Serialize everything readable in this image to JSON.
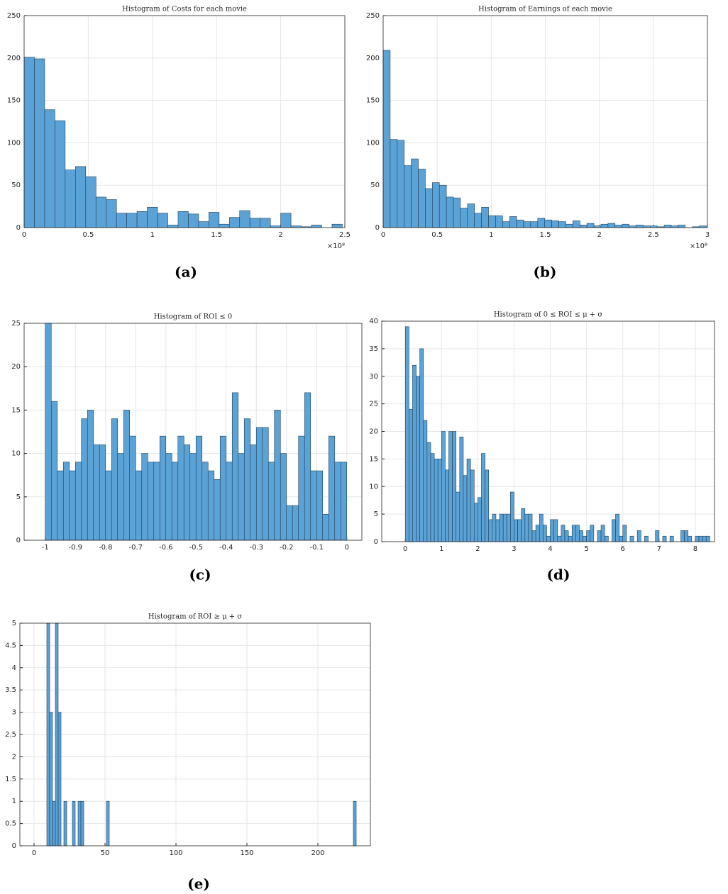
{
  "chart_data": [
    {
      "type": "histogram",
      "title": "Histogram of Costs for each movie",
      "caption": "(a)",
      "x_scale_label": "×10⁸",
      "color": "#5ba3d6",
      "grid": true,
      "xlim": [
        0,
        2.5
      ],
      "ylim": [
        0,
        250
      ],
      "xticks": [
        0,
        0.5,
        1,
        1.5,
        2,
        2.5
      ],
      "yticks": [
        0,
        50,
        100,
        150,
        200,
        250
      ],
      "bins": [
        0,
        0.08,
        0.16,
        0.24,
        0.32,
        0.4,
        0.48,
        0.56,
        0.64,
        0.72,
        0.8,
        0.88,
        0.96,
        1.04,
        1.12,
        1.2,
        1.28,
        1.36,
        1.44,
        1.52,
        1.6,
        1.68,
        1.76,
        1.84,
        1.92,
        2,
        2.08,
        2.16,
        2.24,
        2.32,
        2.4,
        2.48
      ],
      "values": [
        201,
        199,
        139,
        126,
        68,
        72,
        60,
        36,
        33,
        17,
        17,
        19,
        24,
        17,
        3,
        19,
        16,
        7,
        18,
        4,
        12,
        20,
        11,
        11,
        2,
        17,
        2,
        1,
        3,
        0,
        4
      ]
    },
    {
      "type": "histogram",
      "title": "Histogram of Earnings of each movie",
      "caption": "(b)",
      "x_scale_label": "×10⁸",
      "color": "#5ba3d6",
      "grid": true,
      "xlim": [
        0,
        3
      ],
      "ylim": [
        0,
        250
      ],
      "xticks": [
        0,
        0.5,
        1,
        1.5,
        2,
        2.5,
        3
      ],
      "yticks": [
        0,
        50,
        100,
        150,
        200,
        250
      ],
      "bins": [
        0,
        0.065,
        0.13,
        0.195,
        0.26,
        0.325,
        0.39,
        0.455,
        0.52,
        0.585,
        0.65,
        0.715,
        0.78,
        0.845,
        0.91,
        0.975,
        1.04,
        1.105,
        1.17,
        1.235,
        1.3,
        1.365,
        1.43,
        1.495,
        1.56,
        1.625,
        1.69,
        1.755,
        1.82,
        1.885,
        1.95,
        2.015,
        2.08,
        2.145,
        2.21,
        2.275,
        2.34,
        2.405,
        2.47,
        2.535,
        2.6,
        2.665,
        2.73,
        2.795,
        2.86,
        2.925,
        2.99
      ],
      "values": [
        209,
        104,
        103,
        73,
        81,
        69,
        46,
        53,
        50,
        36,
        35,
        23,
        28,
        17,
        24,
        14,
        14,
        7,
        13,
        9,
        7,
        7,
        11,
        9,
        8,
        7,
        4,
        8,
        3,
        5,
        2,
        4,
        5,
        3,
        4,
        2,
        3,
        2,
        2,
        1,
        3,
        2,
        3,
        0,
        1,
        2
      ]
    },
    {
      "type": "histogram",
      "title": "Histogram of ROI ≤ 0",
      "caption": "(c)",
      "color": "#5ba3d6",
      "grid": true,
      "xlim": [
        -1.07,
        0.05
      ],
      "ylim": [
        0,
        25
      ],
      "xticks": [
        -1,
        -0.9,
        -0.8,
        -0.7,
        -0.6,
        -0.5,
        -0.4,
        -0.3,
        -0.2,
        -0.1,
        0
      ],
      "yticks": [
        0,
        5,
        10,
        15,
        20,
        25
      ],
      "bins": [
        -1,
        -0.98,
        -0.96,
        -0.94,
        -0.92,
        -0.9,
        -0.88,
        -0.86,
        -0.84,
        -0.82,
        -0.8,
        -0.78,
        -0.76,
        -0.74,
        -0.72,
        -0.7,
        -0.68,
        -0.66,
        -0.64,
        -0.62,
        -0.6,
        -0.58,
        -0.56,
        -0.54,
        -0.52,
        -0.5,
        -0.48,
        -0.46,
        -0.44,
        -0.42,
        -0.4,
        -0.38,
        -0.36,
        -0.34,
        -0.32,
        -0.3,
        -0.28,
        -0.26,
        -0.24,
        -0.22,
        -0.2,
        -0.18,
        -0.16,
        -0.14,
        -0.12,
        -0.1,
        -0.08,
        -0.06,
        -0.04,
        -0.02,
        0
      ],
      "values": [
        25,
        16,
        8,
        9,
        8,
        9,
        14,
        15,
        11,
        11,
        8,
        14,
        10,
        15,
        12,
        8,
        10,
        9,
        9,
        12,
        10,
        9,
        12,
        11,
        10,
        12,
        9,
        8,
        7,
        12,
        9,
        17,
        10,
        14,
        11,
        13,
        13,
        9,
        15,
        10,
        4,
        4,
        12,
        17,
        8,
        8,
        3,
        12,
        9,
        9
      ]
    },
    {
      "type": "histogram",
      "title": "Histogram of 0 ≤ ROI ≤ μ + σ",
      "caption": "(d)",
      "color": "#5ba3d6",
      "grid": true,
      "xlim": [
        -0.65,
        8.53
      ],
      "ylim": [
        0,
        40
      ],
      "xticks": [
        0,
        1,
        2,
        3,
        4,
        5,
        6,
        7,
        8
      ],
      "yticks": [
        0,
        5,
        10,
        15,
        20,
        25,
        30,
        35,
        40
      ],
      "bins": [
        0,
        0.1,
        0.2,
        0.3,
        0.4,
        0.5,
        0.6,
        0.7,
        0.8,
        0.9,
        1,
        1.1,
        1.2,
        1.3,
        1.4,
        1.5,
        1.6,
        1.7,
        1.8,
        1.9,
        2,
        2.1,
        2.2,
        2.3,
        2.4,
        2.5,
        2.6,
        2.7,
        2.8,
        2.9,
        3,
        3.1,
        3.2,
        3.3,
        3.4,
        3.5,
        3.6,
        3.7,
        3.8,
        3.9,
        4,
        4.1,
        4.2,
        4.3,
        4.4,
        4.5,
        4.6,
        4.7,
        4.8,
        4.9,
        5,
        5.1,
        5.2,
        5.3,
        5.4,
        5.5,
        5.6,
        5.7,
        5.8,
        5.9,
        6,
        6.1,
        6.2,
        6.3,
        6.4,
        6.5,
        6.6,
        6.7,
        6.8,
        6.9,
        7,
        7.1,
        7.2,
        7.3,
        7.4,
        7.5,
        7.6,
        7.7,
        7.8,
        7.9,
        8,
        8.1,
        8.2,
        8.3,
        8.4
      ],
      "values": [
        39,
        24,
        32,
        30,
        35,
        22,
        18,
        16,
        15,
        15,
        20,
        13,
        20,
        20,
        9,
        19,
        12,
        15,
        13,
        7,
        8,
        16,
        13,
        4,
        5,
        4,
        5,
        5,
        5,
        9,
        4,
        4,
        6,
        5,
        5,
        2,
        3,
        5,
        3,
        1,
        4,
        4,
        1,
        3,
        2,
        1,
        3,
        3,
        2,
        1,
        2,
        3,
        0,
        2,
        3,
        1,
        0,
        4,
        5,
        1,
        3,
        0,
        1,
        0,
        2,
        0,
        1,
        0,
        0,
        2,
        0,
        1,
        0,
        1,
        0,
        0,
        2,
        2,
        1,
        0,
        1,
        1,
        1,
        1
      ]
    },
    {
      "type": "histogram",
      "title": "Histogram of ROI ≥ μ + σ",
      "caption": "(e)",
      "color": "#5ba3d6",
      "grid": true,
      "xlim": [
        -10,
        237
      ],
      "ylim": [
        0,
        5
      ],
      "xticks": [
        0,
        50,
        100,
        150,
        200
      ],
      "yticks": [
        0,
        0.5,
        1,
        1.5,
        2,
        2.5,
        3,
        3.5,
        4,
        4.5,
        5
      ],
      "bins": [
        9,
        11,
        13,
        15,
        17,
        19,
        21,
        23,
        25,
        27,
        29,
        31,
        33,
        35,
        37,
        39,
        41,
        43,
        45,
        47,
        49,
        51,
        53,
        55,
        57,
        59,
        61,
        63,
        65,
        67,
        69,
        71,
        73,
        75,
        77,
        79,
        81,
        83,
        85,
        87,
        89,
        91,
        93,
        95,
        97,
        99,
        101,
        103,
        105,
        107,
        109,
        111,
        113,
        115,
        117,
        119,
        121,
        123,
        125,
        127,
        129,
        131,
        133,
        135,
        137,
        139,
        141,
        143,
        145,
        147,
        149,
        151,
        153,
        155,
        157,
        159,
        161,
        163,
        165,
        167,
        169,
        171,
        173,
        175,
        177,
        179,
        181,
        183,
        185,
        187,
        189,
        191,
        193,
        195,
        197,
        199,
        201,
        203,
        205,
        207,
        209,
        211,
        213,
        215,
        217,
        219,
        221,
        223,
        225,
        227
      ],
      "values": [
        5,
        3,
        1,
        5,
        3,
        0,
        1,
        0,
        0,
        1,
        0,
        1,
        1,
        0,
        0,
        0,
        0,
        0,
        0,
        0,
        0,
        1,
        0,
        0,
        0,
        0,
        0,
        0,
        0,
        0,
        0,
        0,
        0,
        0,
        0,
        0,
        0,
        0,
        0,
        0,
        0,
        0,
        0,
        0,
        0,
        0,
        0,
        0,
        0,
        0,
        0,
        0,
        0,
        0,
        0,
        0,
        0,
        0,
        0,
        0,
        0,
        0,
        0,
        0,
        0,
        0,
        0,
        0,
        0,
        0,
        0,
        0,
        0,
        0,
        0,
        0,
        0,
        0,
        0,
        0,
        0,
        0,
        0,
        0,
        0,
        0,
        0,
        0,
        0,
        0,
        0,
        0,
        0,
        0,
        0,
        0,
        0,
        0,
        0,
        0,
        0,
        0,
        0,
        0,
        0,
        0,
        0,
        0,
        1
      ]
    }
  ]
}
